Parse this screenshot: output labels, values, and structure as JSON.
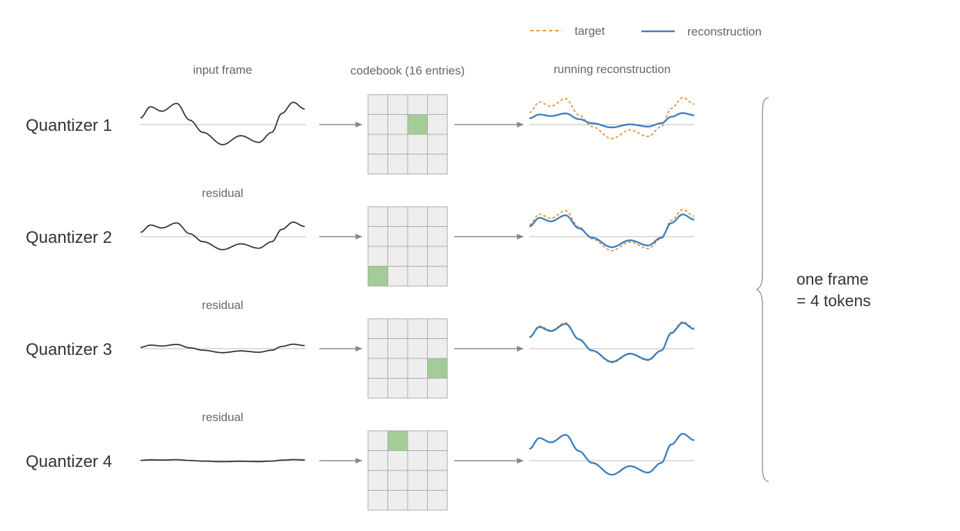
{
  "legend": {
    "target_label": "target",
    "reconstruction_label": "reconstruction"
  },
  "headers": {
    "input": "input frame",
    "codebook": "codebook (16 entries)",
    "reconstruction": "running reconstruction"
  },
  "residual_label": "residual",
  "side_label": {
    "line1": "one frame",
    "line2": "= 4 tokens"
  },
  "colors": {
    "input_wave": "#333333",
    "baseline": "#bbbbbb",
    "arrow": "#888888",
    "cell_fill": "#eeeeee",
    "cell_stroke": "#aaaaaa",
    "selected_cell": "#a3cc96",
    "target": "#e8913a",
    "reconstruction": "#3a7fc1",
    "brace": "#999999"
  },
  "codebook": {
    "rows": 4,
    "cols": 4
  },
  "quantizers": [
    {
      "label": "Quantizer 1",
      "selected": {
        "row": 1,
        "col": 2
      },
      "input_amplitude": 1.0,
      "reconstruction_fraction": 0.35
    },
    {
      "label": "Quantizer 2",
      "selected": {
        "row": 3,
        "col": 0
      },
      "input_amplitude": 0.65,
      "reconstruction_fraction": 0.8
    },
    {
      "label": "Quantizer 3",
      "selected": {
        "row": 2,
        "col": 3
      },
      "input_amplitude": 0.2,
      "reconstruction_fraction": 0.95
    },
    {
      "label": "Quantizer 4",
      "selected": {
        "row": 0,
        "col": 1
      },
      "input_amplitude": 0.05,
      "reconstruction_fraction": 1.0
    }
  ]
}
